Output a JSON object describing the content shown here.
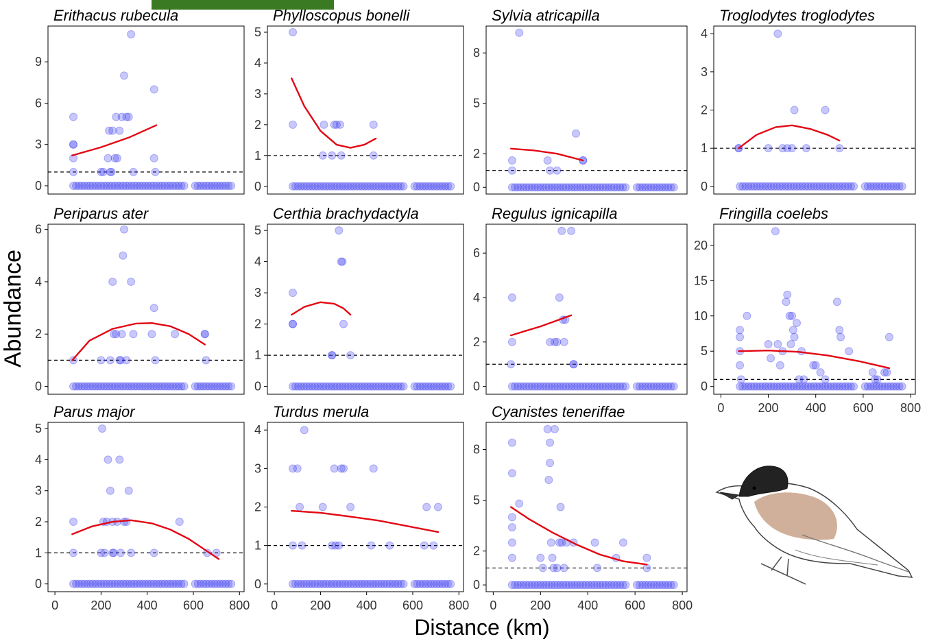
{
  "figure": {
    "xlabel": "Distance (km)",
    "ylabel": "Abundance",
    "colors": {
      "points": "#3b3bef",
      "fit": "#e30613",
      "reference": "#000000",
      "topbar": "#3a7a22"
    },
    "illustration": "bird-illustration (blackcap)"
  },
  "chart_data": [
    {
      "type": "scatter",
      "title": "Erithacus rubecula",
      "xlim": [
        -30,
        820
      ],
      "ylim": [
        -0.6,
        11.6
      ],
      "yticks": [
        0,
        3,
        6,
        9
      ],
      "xticks": [],
      "reference_line": 1,
      "fit": {
        "from": 75,
        "to": 440,
        "points": [
          [
            75,
            2.2
          ],
          [
            200,
            2.8
          ],
          [
            320,
            3.5
          ],
          [
            440,
            4.4
          ]
        ]
      },
      "points": [
        [
          80,
          5
        ],
        [
          80,
          3
        ],
        [
          80,
          3
        ],
        [
          80,
          1
        ],
        [
          80,
          2
        ],
        [
          230,
          2
        ],
        [
          235,
          4
        ],
        [
          245,
          1
        ],
        [
          240,
          1
        ],
        [
          260,
          2
        ],
        [
          265,
          5
        ],
        [
          270,
          2
        ],
        [
          280,
          4
        ],
        [
          290,
          5
        ],
        [
          300,
          8
        ],
        [
          310,
          5
        ],
        [
          320,
          5
        ],
        [
          330,
          11
        ],
        [
          340,
          1
        ],
        [
          430,
          7
        ],
        [
          430,
          2
        ],
        [
          435,
          1
        ],
        [
          250,
          4
        ],
        [
          200,
          1
        ],
        [
          210,
          1
        ]
      ],
      "zero_range": [
        80,
        770
      ]
    },
    {
      "type": "scatter",
      "title": "Phylloscopus bonelli",
      "xlim": [
        -30,
        820
      ],
      "ylim": [
        -0.25,
        5.2
      ],
      "yticks": [
        0,
        1,
        2,
        3,
        4,
        5
      ],
      "xticks": [],
      "reference_line": 1,
      "fit": {
        "from": 75,
        "to": 440,
        "points": [
          [
            75,
            3.5
          ],
          [
            130,
            2.6
          ],
          [
            200,
            1.8
          ],
          [
            270,
            1.35
          ],
          [
            330,
            1.25
          ],
          [
            390,
            1.35
          ],
          [
            440,
            1.55
          ]
        ]
      },
      "points": [
        [
          80,
          5
        ],
        [
          80,
          2
        ],
        [
          210,
          1
        ],
        [
          215,
          2
        ],
        [
          250,
          1
        ],
        [
          260,
          2
        ],
        [
          270,
          2
        ],
        [
          285,
          2
        ],
        [
          290,
          1
        ],
        [
          430,
          2
        ],
        [
          430,
          1
        ]
      ],
      "zero_range": [
        80,
        770
      ]
    },
    {
      "type": "scatter",
      "title": "Sylvia atricapilla",
      "xlim": [
        -30,
        820
      ],
      "ylim": [
        -0.4,
        9.6
      ],
      "yticks": [
        0,
        2,
        5,
        8
      ],
      "xticks": [],
      "reference_line": 1,
      "fit": {
        "from": 75,
        "to": 380,
        "points": [
          [
            75,
            2.3
          ],
          [
            170,
            2.2
          ],
          [
            270,
            2.0
          ],
          [
            380,
            1.6
          ]
        ]
      },
      "points": [
        [
          80,
          1.6
        ],
        [
          80,
          1
        ],
        [
          110,
          9.2
        ],
        [
          230,
          1.6
        ],
        [
          240,
          1
        ],
        [
          270,
          1
        ],
        [
          350,
          3.2
        ],
        [
          380,
          1.6
        ],
        [
          380,
          1.6
        ]
      ],
      "zero_range": [
        80,
        770
      ]
    },
    {
      "type": "scatter",
      "title": "Troglodytes troglodytes",
      "xlim": [
        -30,
        820
      ],
      "ylim": [
        -0.2,
        4.2
      ],
      "yticks": [
        0,
        1,
        2,
        3,
        4
      ],
      "xticks": [],
      "reference_line": 1,
      "fit": {
        "from": 75,
        "to": 500,
        "points": [
          [
            75,
            1.0
          ],
          [
            150,
            1.35
          ],
          [
            230,
            1.55
          ],
          [
            300,
            1.6
          ],
          [
            380,
            1.5
          ],
          [
            450,
            1.35
          ],
          [
            500,
            1.2
          ]
        ]
      },
      "points": [
        [
          75,
          1
        ],
        [
          75,
          1
        ],
        [
          200,
          1
        ],
        [
          240,
          4
        ],
        [
          260,
          1
        ],
        [
          280,
          1
        ],
        [
          300,
          1
        ],
        [
          310,
          2
        ],
        [
          360,
          1
        ],
        [
          440,
          2
        ],
        [
          500,
          1
        ]
      ],
      "zero_range": [
        80,
        770
      ]
    },
    {
      "type": "scatter",
      "title": "Periparus ater",
      "xlim": [
        -30,
        820
      ],
      "ylim": [
        -0.3,
        6.2
      ],
      "yticks": [
        0,
        2,
        4,
        6
      ],
      "xticks": [],
      "reference_line": 1,
      "fit": {
        "from": 75,
        "to": 650,
        "points": [
          [
            75,
            1.0
          ],
          [
            150,
            1.75
          ],
          [
            250,
            2.2
          ],
          [
            350,
            2.4
          ],
          [
            420,
            2.42
          ],
          [
            500,
            2.3
          ],
          [
            580,
            2.0
          ],
          [
            650,
            1.6
          ]
        ]
      },
      "points": [
        [
          80,
          1
        ],
        [
          200,
          1
        ],
        [
          240,
          1
        ],
        [
          250,
          4
        ],
        [
          255,
          2
        ],
        [
          265,
          2
        ],
        [
          280,
          1
        ],
        [
          285,
          1
        ],
        [
          290,
          2
        ],
        [
          295,
          5
        ],
        [
          300,
          6
        ],
        [
          310,
          1
        ],
        [
          330,
          4
        ],
        [
          340,
          2
        ],
        [
          420,
          2
        ],
        [
          430,
          3
        ],
        [
          435,
          1
        ],
        [
          520,
          2
        ],
        [
          650,
          2
        ],
        [
          650,
          2
        ],
        [
          655,
          1
        ]
      ],
      "zero_range": [
        80,
        770
      ]
    },
    {
      "type": "scatter",
      "title": "Certhia brachydactyla",
      "xlim": [
        -30,
        820
      ],
      "ylim": [
        -0.25,
        5.2
      ],
      "yticks": [
        0,
        1,
        2,
        3,
        4,
        5
      ],
      "xticks": [],
      "reference_line": 1,
      "fit": {
        "from": 75,
        "to": 330,
        "points": [
          [
            75,
            2.3
          ],
          [
            130,
            2.55
          ],
          [
            200,
            2.7
          ],
          [
            260,
            2.65
          ],
          [
            300,
            2.5
          ],
          [
            330,
            2.3
          ]
        ]
      },
      "points": [
        [
          80,
          3
        ],
        [
          80,
          2
        ],
        [
          80,
          2
        ],
        [
          250,
          1
        ],
        [
          250,
          1
        ],
        [
          280,
          5
        ],
        [
          290,
          4
        ],
        [
          295,
          4
        ],
        [
          300,
          2
        ],
        [
          330,
          1
        ]
      ],
      "zero_range": [
        80,
        770
      ]
    },
    {
      "type": "scatter",
      "title": "Regulus ignicapilla",
      "xlim": [
        -30,
        820
      ],
      "ylim": [
        -0.35,
        7.3
      ],
      "yticks": [
        0,
        2,
        4,
        6
      ],
      "xticks": [],
      "reference_line": 1,
      "fit": {
        "from": 75,
        "to": 330,
        "points": [
          [
            75,
            2.3
          ],
          [
            200,
            2.7
          ],
          [
            330,
            3.2
          ]
        ]
      },
      "points": [
        [
          80,
          4
        ],
        [
          80,
          2
        ],
        [
          75,
          1
        ],
        [
          240,
          2
        ],
        [
          260,
          2
        ],
        [
          270,
          2
        ],
        [
          280,
          4
        ],
        [
          290,
          7
        ],
        [
          295,
          3
        ],
        [
          300,
          2
        ],
        [
          305,
          3
        ],
        [
          330,
          7
        ],
        [
          340,
          1
        ],
        [
          340,
          1
        ]
      ],
      "zero_range": [
        80,
        770
      ]
    },
    {
      "type": "scatter",
      "title": "Fringilla coelebs",
      "xlim": [
        -30,
        820
      ],
      "ylim": [
        -1.1,
        23.0
      ],
      "yticks": [
        0,
        5,
        10,
        15,
        20
      ],
      "xticks": [
        0,
        200,
        400,
        600,
        800
      ],
      "reference_line": 1,
      "fit": {
        "from": 75,
        "to": 710,
        "points": [
          [
            75,
            5.0
          ],
          [
            200,
            5.1
          ],
          [
            330,
            4.9
          ],
          [
            450,
            4.4
          ],
          [
            580,
            3.6
          ],
          [
            710,
            2.6
          ]
        ]
      },
      "points": [
        [
          80,
          8
        ],
        [
          80,
          7
        ],
        [
          80,
          5
        ],
        [
          80,
          3
        ],
        [
          85,
          1
        ],
        [
          110,
          10
        ],
        [
          200,
          6
        ],
        [
          210,
          4
        ],
        [
          230,
          22
        ],
        [
          240,
          6
        ],
        [
          250,
          3
        ],
        [
          260,
          5
        ],
        [
          275,
          12
        ],
        [
          280,
          13
        ],
        [
          290,
          10
        ],
        [
          295,
          6
        ],
        [
          300,
          10
        ],
        [
          305,
          8
        ],
        [
          310,
          7
        ],
        [
          320,
          9
        ],
        [
          330,
          1
        ],
        [
          340,
          5
        ],
        [
          350,
          1
        ],
        [
          390,
          3
        ],
        [
          400,
          3
        ],
        [
          420,
          2
        ],
        [
          440,
          1
        ],
        [
          490,
          12
        ],
        [
          500,
          8
        ],
        [
          505,
          7
        ],
        [
          540,
          5
        ],
        [
          640,
          2
        ],
        [
          650,
          1
        ],
        [
          660,
          1
        ],
        [
          690,
          2
        ],
        [
          700,
          2
        ],
        [
          710,
          7
        ]
      ],
      "zero_range": [
        80,
        770
      ]
    },
    {
      "type": "scatter",
      "title": "Parus major",
      "xlim": [
        -30,
        820
      ],
      "ylim": [
        -0.25,
        5.2
      ],
      "yticks": [
        0,
        1,
        2,
        3,
        4,
        5
      ],
      "xticks": [
        0,
        200,
        400,
        600,
        800
      ],
      "reference_line": 1,
      "fit": {
        "from": 75,
        "to": 710,
        "points": [
          [
            75,
            1.6
          ],
          [
            160,
            1.85
          ],
          [
            250,
            2.0
          ],
          [
            330,
            2.05
          ],
          [
            420,
            1.95
          ],
          [
            500,
            1.75
          ],
          [
            580,
            1.45
          ],
          [
            650,
            1.1
          ],
          [
            710,
            0.8
          ]
        ]
      },
      "points": [
        [
          80,
          2
        ],
        [
          80,
          1
        ],
        [
          200,
          1
        ],
        [
          205,
          5
        ],
        [
          210,
          2
        ],
        [
          215,
          1
        ],
        [
          225,
          2
        ],
        [
          230,
          4
        ],
        [
          240,
          3
        ],
        [
          250,
          2
        ],
        [
          250,
          1
        ],
        [
          255,
          1
        ],
        [
          270,
          2
        ],
        [
          280,
          4
        ],
        [
          285,
          1
        ],
        [
          300,
          2
        ],
        [
          310,
          2
        ],
        [
          320,
          3
        ],
        [
          330,
          1
        ],
        [
          430,
          1
        ],
        [
          540,
          2
        ],
        [
          660,
          1
        ],
        [
          700,
          1
        ]
      ],
      "zero_range": [
        80,
        770
      ]
    },
    {
      "type": "scatter",
      "title": "Turdus merula",
      "xlim": [
        -30,
        820
      ],
      "ylim": [
        -0.2,
        4.2
      ],
      "yticks": [
        0,
        1,
        2,
        3,
        4
      ],
      "xticks": [
        0,
        200,
        400,
        600,
        800
      ],
      "reference_line": 1,
      "fit": {
        "from": 75,
        "to": 710,
        "points": [
          [
            75,
            1.9
          ],
          [
            200,
            1.85
          ],
          [
            330,
            1.75
          ],
          [
            450,
            1.65
          ],
          [
            580,
            1.5
          ],
          [
            710,
            1.35
          ]
        ]
      },
      "points": [
        [
          80,
          3
        ],
        [
          80,
          1
        ],
        [
          100,
          3
        ],
        [
          110,
          2
        ],
        [
          120,
          1
        ],
        [
          130,
          4
        ],
        [
          210,
          2
        ],
        [
          250,
          1
        ],
        [
          260,
          3
        ],
        [
          265,
          1
        ],
        [
          280,
          1
        ],
        [
          290,
          3
        ],
        [
          300,
          3
        ],
        [
          330,
          2
        ],
        [
          420,
          1
        ],
        [
          430,
          3
        ],
        [
          500,
          1
        ],
        [
          650,
          1
        ],
        [
          660,
          2
        ],
        [
          690,
          1
        ],
        [
          710,
          2
        ]
      ],
      "zero_range": [
        80,
        770
      ]
    },
    {
      "type": "scatter",
      "title": "Cyanistes teneriffae",
      "xlim": [
        -30,
        820
      ],
      "ylim": [
        -0.4,
        9.6
      ],
      "yticks": [
        0,
        2,
        5,
        8
      ],
      "xticks": [
        0,
        200,
        400,
        600,
        800
      ],
      "reference_line": 1,
      "fit": {
        "from": 75,
        "to": 650,
        "points": [
          [
            75,
            4.6
          ],
          [
            150,
            3.9
          ],
          [
            250,
            3.1
          ],
          [
            350,
            2.4
          ],
          [
            450,
            1.8
          ],
          [
            550,
            1.4
          ],
          [
            650,
            1.2
          ]
        ]
      },
      "points": [
        [
          80,
          8.4
        ],
        [
          80,
          6.6
        ],
        [
          80,
          4.0
        ],
        [
          80,
          2.5
        ],
        [
          80,
          1.6
        ],
        [
          80,
          3.4
        ],
        [
          110,
          4.8
        ],
        [
          200,
          1.6
        ],
        [
          210,
          1
        ],
        [
          230,
          9.2
        ],
        [
          235,
          6.2
        ],
        [
          240,
          8.4
        ],
        [
          240,
          7.2
        ],
        [
          245,
          2.5
        ],
        [
          250,
          1.6
        ],
        [
          255,
          1
        ],
        [
          260,
          9.2
        ],
        [
          270,
          1
        ],
        [
          280,
          2.5
        ],
        [
          285,
          4.6
        ],
        [
          290,
          2.5
        ],
        [
          300,
          1
        ],
        [
          310,
          2.5
        ],
        [
          340,
          2.5
        ],
        [
          430,
          2.5
        ],
        [
          440,
          1
        ],
        [
          520,
          1.6
        ],
        [
          550,
          2.5
        ],
        [
          650,
          1.6
        ],
        [
          650,
          1
        ]
      ],
      "zero_range": [
        80,
        770
      ]
    }
  ]
}
